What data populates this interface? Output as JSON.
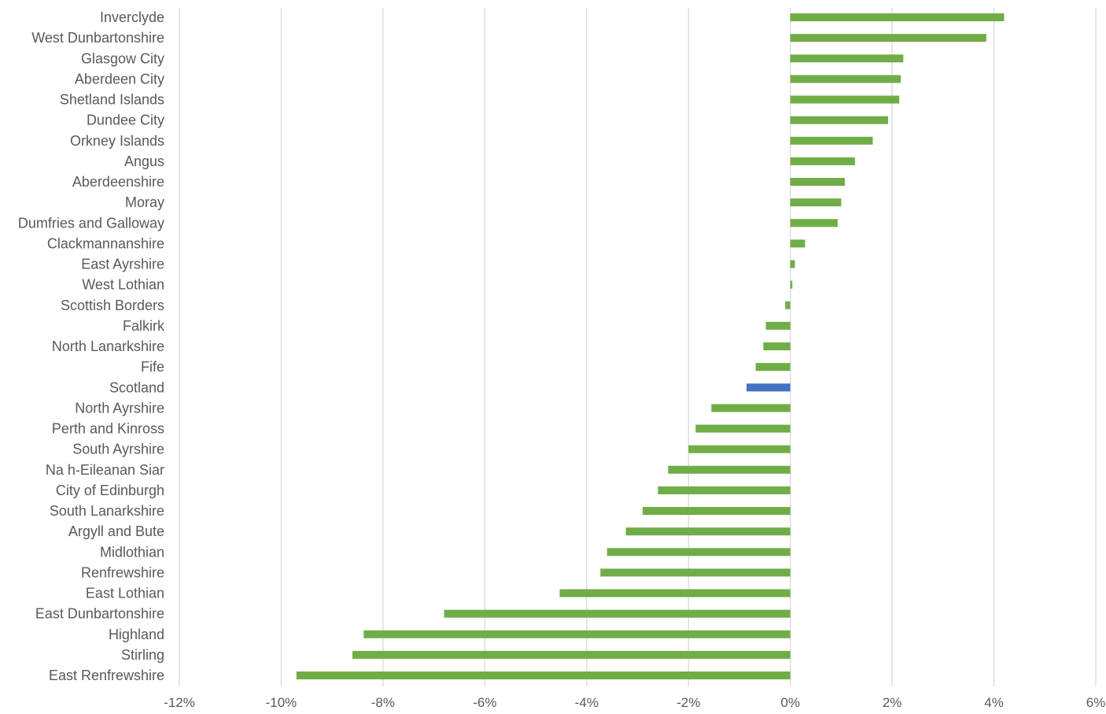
{
  "chart_data": {
    "type": "bar",
    "orientation": "horizontal",
    "title": "",
    "xlabel": "",
    "ylabel": "",
    "x_unit": "%",
    "xlim": [
      -12,
      6
    ],
    "x_ticks": [
      -12,
      -10,
      -8,
      -6,
      -4,
      -2,
      0,
      2,
      4,
      6
    ],
    "x_tick_labels": [
      "-12%",
      "-10%",
      "-8%",
      "-6%",
      "-4%",
      "-2%",
      "0%",
      "2%",
      "4%",
      "6%"
    ],
    "grid": "vertical",
    "legend": "none",
    "colors": {
      "default": "#70ad47",
      "highlight": "#4472c4",
      "grid": "#d9d9d9",
      "text": "#595959"
    },
    "highlight_category": "Scotland",
    "categories": [
      "Inverclyde",
      "West Dunbartonshire",
      "Glasgow City",
      "Aberdeen City",
      "Shetland Islands",
      "Dundee City",
      "Orkney Islands",
      "Angus",
      "Aberdeenshire",
      "Moray",
      "Dumfries and Galloway",
      "Clackmannanshire",
      "East Ayrshire",
      "West Lothian",
      "Scottish Borders",
      "Falkirk",
      "North Lanarkshire",
      "Fife",
      "Scotland",
      "North Ayrshire",
      "Perth and Kinross",
      "South Ayrshire",
      "Na h-Eileanan Siar",
      "City of Edinburgh",
      "South Lanarkshire",
      "Argyll and Bute",
      "Midlothian",
      "Renfrewshire",
      "East Lothian",
      "East Dunbartonshire",
      "Highland",
      "Stirling",
      "East Renfrewshire"
    ],
    "values": [
      4.2,
      3.85,
      2.22,
      2.17,
      2.14,
      1.92,
      1.62,
      1.27,
      1.07,
      1.0,
      0.93,
      0.29,
      0.09,
      0.04,
      -0.1,
      -0.48,
      -0.53,
      -0.68,
      -0.86,
      -1.55,
      -1.86,
      -2.0,
      -2.4,
      -2.6,
      -2.9,
      -3.23,
      -3.6,
      -3.73,
      -4.53,
      -6.8,
      -8.38,
      -8.6,
      -9.7
    ]
  }
}
